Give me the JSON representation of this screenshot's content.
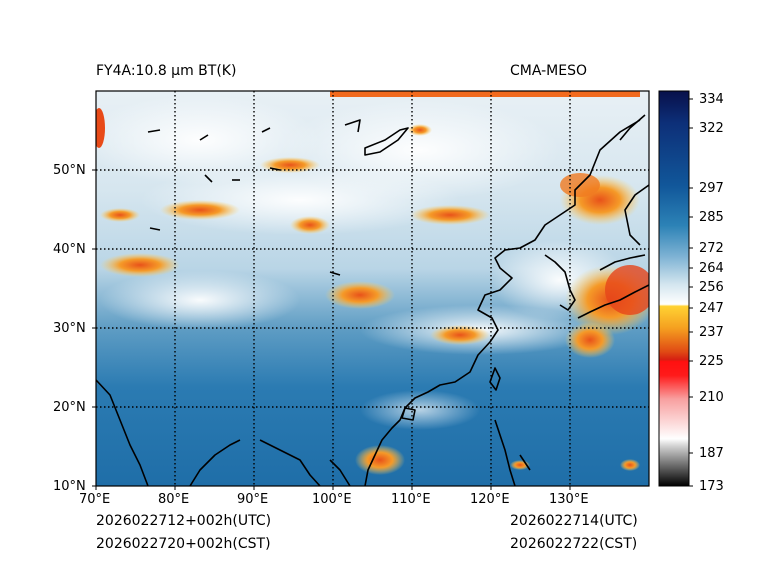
{
  "map": {
    "title_left": "FY4A:10.8 μm BT(K)",
    "title_right": "CMA-MESO",
    "lat_labels": [
      "50°N",
      "40°N",
      "30°N",
      "20°N",
      "10°N"
    ],
    "lon_labels": [
      "70°E",
      "80°E",
      "90°E",
      "100°E",
      "110°E",
      "120°E",
      "130°E"
    ],
    "footer": {
      "init_utc": "2026022712+002h(UTC)",
      "init_cst": "2026022720+002h(CST)",
      "valid_utc": "2026022714(UTC)",
      "valid_cst": "2026022722(CST)"
    }
  },
  "colorbar": {
    "labels": [
      "334",
      "322",
      "297",
      "285",
      "272",
      "264",
      "256",
      "247",
      "237",
      "225",
      "210",
      "187",
      "173"
    ]
  }
}
